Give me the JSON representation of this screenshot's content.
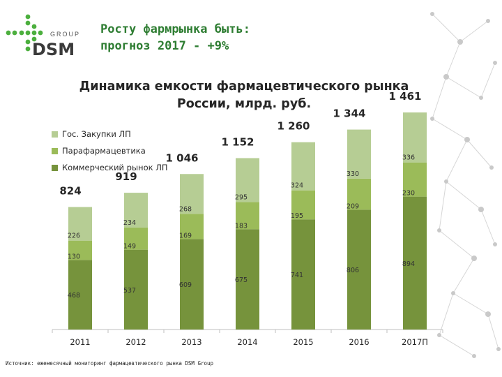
{
  "header": {
    "logo_text": "DSM",
    "logo_group": "GROUP",
    "title_line1": "Росту фармрынка быть:",
    "title_line2": "прогноз 2017 - +9%"
  },
  "colors": {
    "title": "#2e7d32",
    "gos": "#b6cd94",
    "para": "#9bbb59",
    "komm": "#76933c",
    "logo_green": "#4caf3e",
    "logo_dark": "#3a3a3a"
  },
  "chart_data": {
    "type": "bar",
    "stacked": true,
    "title": "Динамика емкости фармацевтического рынка России, млрд. руб.",
    "title_line1": "Динамика емкости фармацевтического рынка",
    "title_line2": "России, млрд. руб.",
    "categories": [
      "2011",
      "2012",
      "2013",
      "2014",
      "2015",
      "2016",
      "2017П"
    ],
    "series": [
      {
        "name": "Коммерческий рынок ЛП",
        "values": [
          468,
          537,
          609,
          675,
          741,
          806,
          894
        ]
      },
      {
        "name": "Парафармацевтика",
        "values": [
          130,
          149,
          169,
          183,
          195,
          209,
          230
        ]
      },
      {
        "name": "Гос. Закупки ЛП",
        "values": [
          226,
          234,
          268,
          295,
          324,
          330,
          336
        ]
      }
    ],
    "totals": [
      "824",
      "919",
      "1 046",
      "1 152",
      "1 260",
      "1 344",
      "1 461"
    ],
    "legend": [
      "Гос. Закупки ЛП",
      "Парафармацевтика",
      "Коммерческий рынок ЛП"
    ],
    "legend_position": "top-left",
    "grid": false,
    "ylim": [
      0,
      1700
    ]
  },
  "footer": {
    "source": "Источник: ежемесячный мониторинг фармацевтического рынка DSM Group"
  }
}
